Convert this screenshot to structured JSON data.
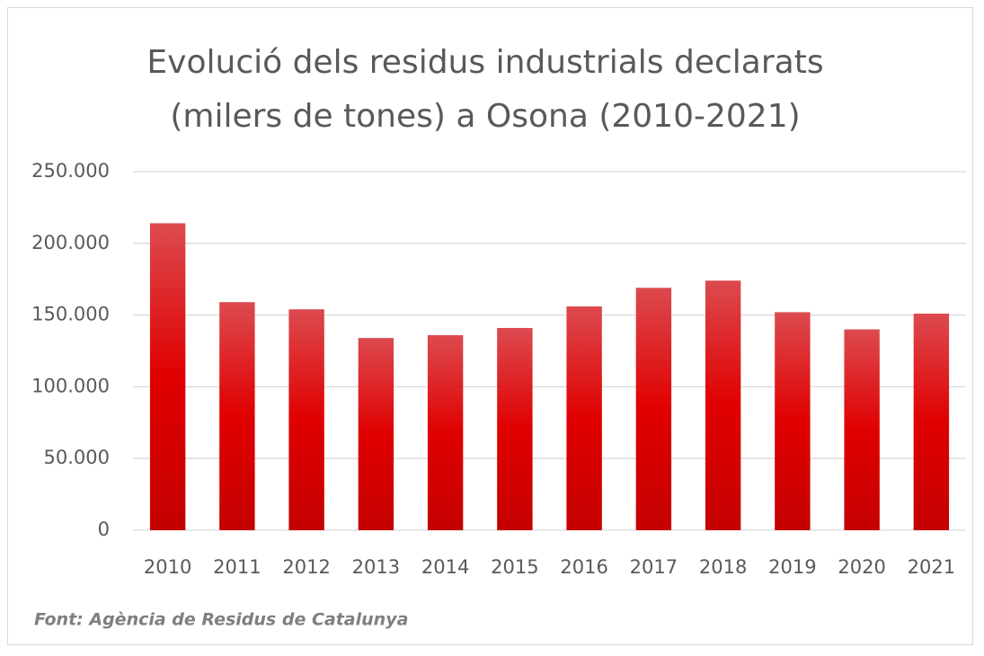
{
  "chart_data": {
    "type": "bar",
    "title": "Evolució dels residus industrials declarats (milers de tones) a Osona (2010-2021)",
    "source": "Font: Agència de Residus de Catalunya",
    "categories": [
      "2010",
      "2011",
      "2012",
      "2013",
      "2014",
      "2015",
      "2016",
      "2017",
      "2018",
      "2019",
      "2020",
      "2021"
    ],
    "values": [
      214000,
      159000,
      154000,
      134000,
      136000,
      141000,
      156000,
      169000,
      174000,
      152000,
      140000,
      151000
    ],
    "color": "#d00000",
    "ylim": [
      0,
      250000
    ],
    "yticks": [
      0,
      {
        "value": 50000,
        "label": "50.000"
      },
      {
        "value": 100000,
        "label": "100.000"
      },
      {
        "value": 150000,
        "label": "150.000"
      },
      {
        "value": 200000,
        "label": "200.000"
      },
      {
        "value": 250000,
        "label": "250.000"
      }
    ],
    "grid": true
  }
}
